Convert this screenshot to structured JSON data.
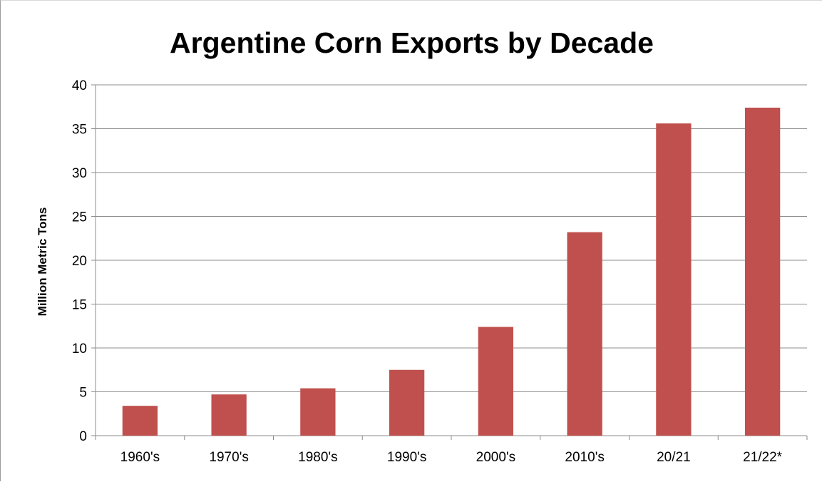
{
  "chart_data": {
    "type": "bar",
    "title": "Argentine Corn Exports by Decade",
    "xlabel": "",
    "ylabel": "Million Metric Tons",
    "categories": [
      "1960's",
      "1970's",
      "1980's",
      "1990's",
      "2000's",
      "2010's",
      "20/21",
      "21/22*"
    ],
    "values": [
      3.4,
      4.7,
      5.4,
      7.5,
      12.4,
      23.2,
      35.6,
      37.4
    ],
    "ylim": [
      0,
      40
    ],
    "yticks": [
      0,
      5,
      10,
      15,
      20,
      25,
      30,
      35,
      40
    ],
    "grid": true,
    "legend": "none",
    "bar_color": "#C0504D",
    "gridline_color": "#8C8C8C"
  }
}
